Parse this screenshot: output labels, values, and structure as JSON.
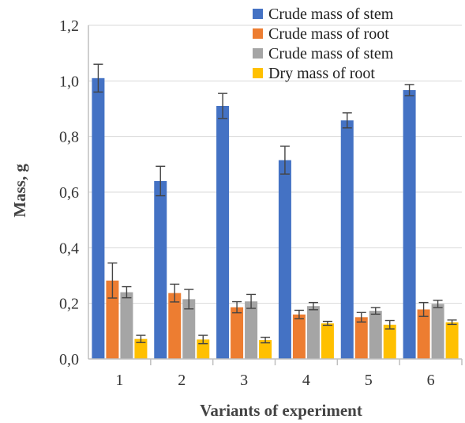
{
  "chart_data": {
    "type": "bar",
    "categories": [
      "1",
      "2",
      "3",
      "4",
      "5",
      "6"
    ],
    "series": [
      {
        "name": "Crude mass of stem",
        "color": "#4472c4",
        "values": [
          1.01,
          0.64,
          0.91,
          0.715,
          0.858,
          0.967
        ],
        "errors": [
          0.05,
          0.053,
          0.045,
          0.05,
          0.027,
          0.02
        ]
      },
      {
        "name": "Crude mass of root",
        "color": "#ed7d31",
        "values": [
          0.282,
          0.237,
          0.186,
          0.16,
          0.15,
          0.178
        ],
        "errors": [
          0.063,
          0.032,
          0.02,
          0.015,
          0.017,
          0.025
        ]
      },
      {
        "name": "Crude mass of stem",
        "color": "#a5a5a5",
        "values": [
          0.24,
          0.215,
          0.207,
          0.19,
          0.173,
          0.198
        ],
        "errors": [
          0.02,
          0.035,
          0.025,
          0.013,
          0.012,
          0.013
        ]
      },
      {
        "name": "Dry mass of root",
        "color": "#ffc000",
        "values": [
          0.072,
          0.07,
          0.068,
          0.128,
          0.123,
          0.132
        ],
        "errors": [
          0.013,
          0.015,
          0.01,
          0.007,
          0.015,
          0.008
        ]
      }
    ],
    "xlabel": "Variants of experiment",
    "ylabel": "Mass, g",
    "ylim": [
      0,
      1.2
    ],
    "yticks": [
      "0,0",
      "0,2",
      "0,4",
      "0,6",
      "0,8",
      "1,0",
      "1,2"
    ],
    "grid": true,
    "legend_position": "top-right"
  }
}
